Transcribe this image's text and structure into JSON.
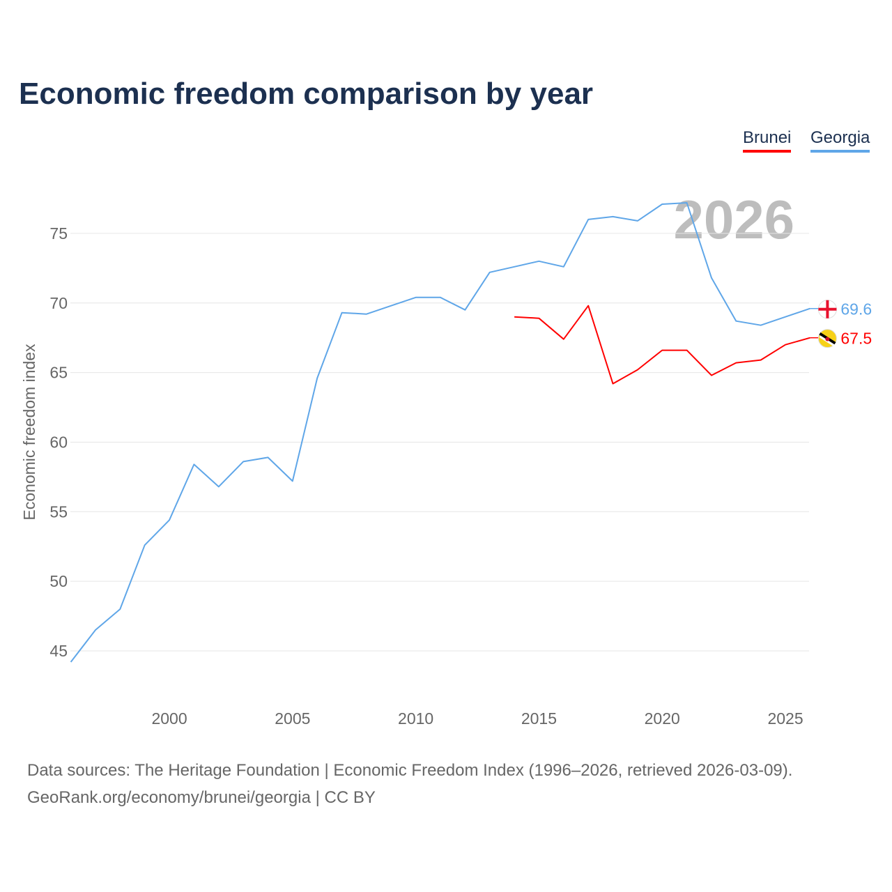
{
  "chart_data": {
    "type": "line",
    "title": "Economic freedom comparison by year",
    "xlabel": "",
    "ylabel": "Economic freedom index",
    "xlim": [
      1996,
      2026
    ],
    "ylim": [
      45,
      78
    ],
    "xticks": [
      2000,
      2005,
      2010,
      2015,
      2020,
      2025
    ],
    "yticks": [
      45,
      50,
      55,
      60,
      65,
      70,
      75
    ],
    "grid": true,
    "legend_placement": "top-right",
    "year_watermark": "2026",
    "series": [
      {
        "name": "Brunei",
        "color": "#ff0000",
        "x": [
          2014,
          2015,
          2016,
          2017,
          2018,
          2019,
          2020,
          2021,
          2022,
          2023,
          2024,
          2025,
          2026
        ],
        "values": [
          69.0,
          68.9,
          67.4,
          69.8,
          64.2,
          65.2,
          66.6,
          66.6,
          64.8,
          65.7,
          65.9,
          67.0,
          67.5
        ],
        "end_label": "67.5"
      },
      {
        "name": "Georgia",
        "color": "#5fa6e8",
        "x": [
          1996,
          1997,
          1998,
          1999,
          2000,
          2001,
          2002,
          2003,
          2004,
          2005,
          2006,
          2007,
          2008,
          2009,
          2010,
          2011,
          2012,
          2013,
          2014,
          2015,
          2016,
          2017,
          2018,
          2019,
          2020,
          2021,
          2022,
          2023,
          2024,
          2025,
          2026
        ],
        "values": [
          44.2,
          46.5,
          48.0,
          52.6,
          54.4,
          58.4,
          56.8,
          58.6,
          58.9,
          57.2,
          64.6,
          69.3,
          69.2,
          69.8,
          70.4,
          70.4,
          69.5,
          72.2,
          72.6,
          73.0,
          72.6,
          76.0,
          76.2,
          75.9,
          77.1,
          77.2,
          71.8,
          68.7,
          68.4,
          69.0,
          69.6
        ],
        "end_label": "69.6"
      }
    ]
  },
  "footer": {
    "line1": "Data sources: The Heritage Foundation | Economic Freedom Index (1996–2026, retrieved 2026-03-09).",
    "line2": "GeoRank.org/economy/brunei/georgia | CC BY"
  }
}
